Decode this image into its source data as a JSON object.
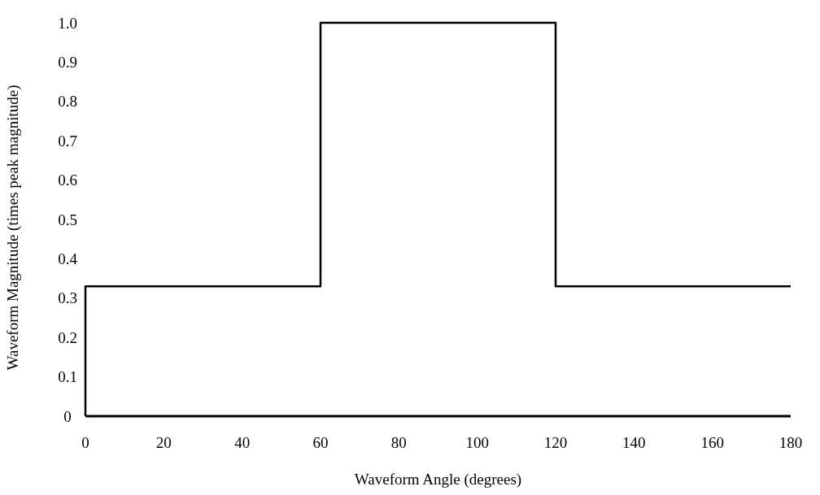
{
  "chart_data": {
    "type": "line",
    "xlabel": "Waveform Angle (degrees)",
    "ylabel": "Waveform Magnitude (times peak magnitude)",
    "xlim": [
      0,
      180
    ],
    "ylim": [
      0,
      1
    ],
    "xticks": [
      0,
      20,
      40,
      60,
      80,
      100,
      120,
      140,
      160,
      180
    ],
    "yticks": [
      0,
      0.1,
      0.2,
      0.3,
      0.4,
      0.5,
      0.6,
      0.7,
      0.8,
      0.9,
      {
        "value": 1,
        "label": "1.0"
      }
    ],
    "grid": false,
    "series": [
      {
        "color": "#000000",
        "x": [
          0,
          0,
          60,
          60,
          120,
          120,
          180
        ],
        "values": [
          0,
          0.33,
          0.33,
          1,
          1,
          0.33,
          0.33
        ]
      }
    ]
  }
}
